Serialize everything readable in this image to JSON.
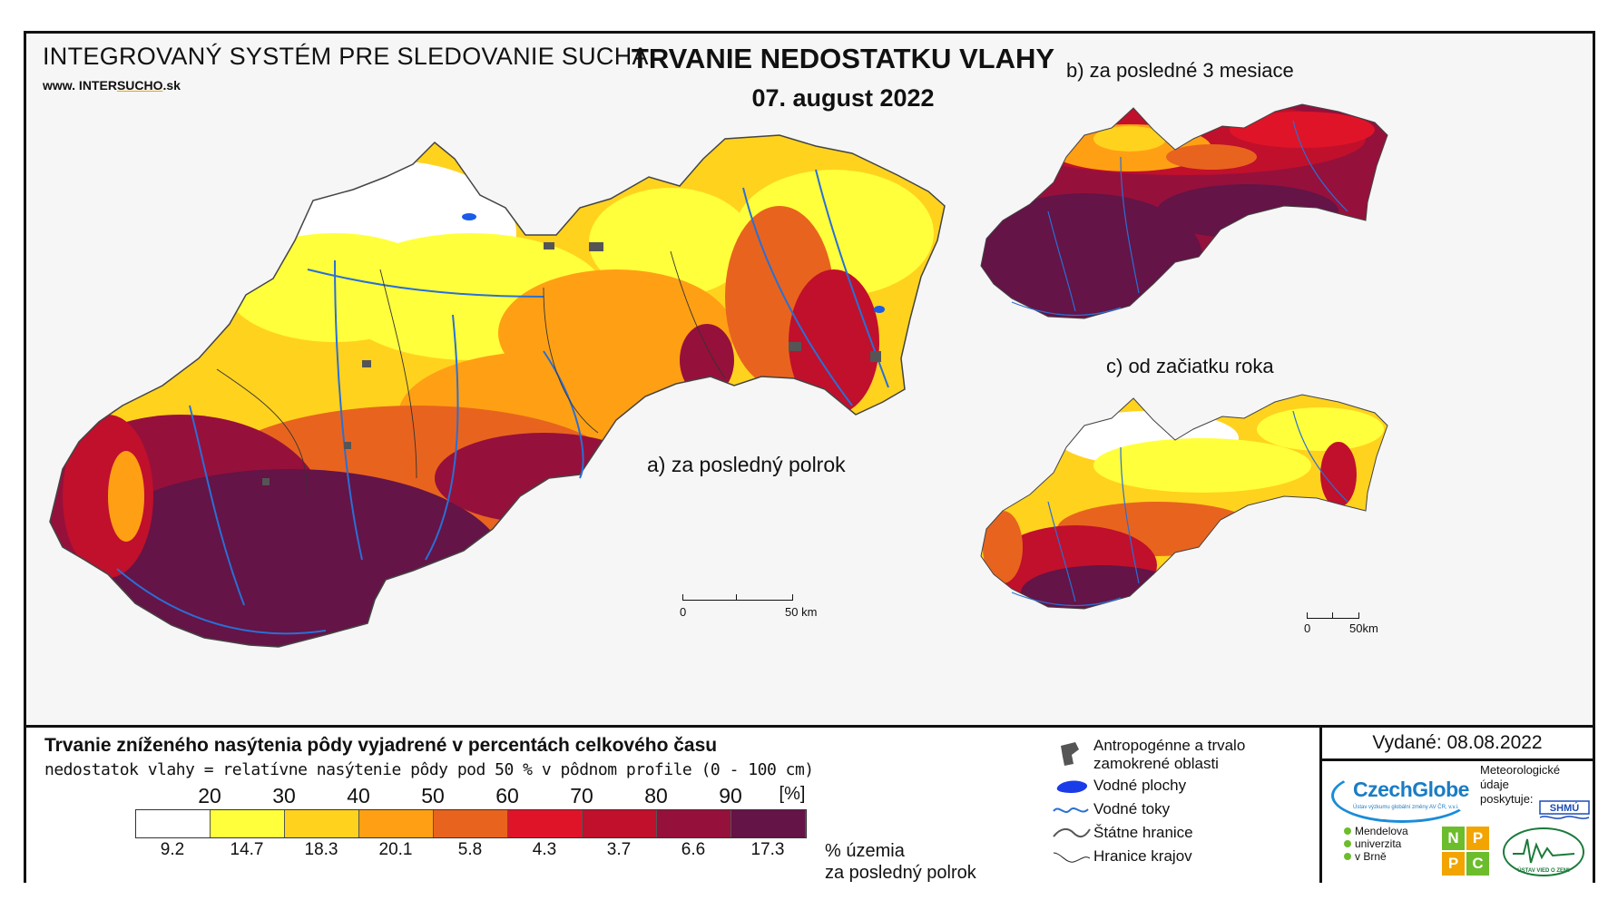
{
  "header": {
    "system_name": "INTEGROVANÝ SYSTÉM PRE SLEDOVANIE SUCHA",
    "url_prefix": "www. INTER",
    "url_brand": "SUCHO",
    "url_suffix": ".sk",
    "title": "TRVANIE NEDOSTATKU VLAHY",
    "date": "07. august 2022"
  },
  "maps": {
    "a_label": "a) za posledný polrok",
    "b_label": "b) za posledné 3 mesiace",
    "c_label": "c) od začiatku roka",
    "scale_main": {
      "start": "0",
      "end": "50 km"
    },
    "scale_small": {
      "start": "0",
      "end": "50km"
    }
  },
  "legend": {
    "title": "Trvanie zníženého nasýtenia pôdy vyjadrené v percentách celkového času",
    "subtitle": "nedostatok vlahy = relatívne nasýtenie pôdy pod 50 % v pôdnom profile (0 - 100 cm)",
    "ticks": [
      "20",
      "30",
      "40",
      "50",
      "60",
      "70",
      "80",
      "90"
    ],
    "unit": "[%]",
    "classes": [
      {
        "color": "#ffffff",
        "pct": "9.2"
      },
      {
        "color": "#ffff3c",
        "pct": "14.7"
      },
      {
        "color": "#ffd21e",
        "pct": "18.3"
      },
      {
        "color": "#ffa014",
        "pct": "20.1"
      },
      {
        "color": "#e8641e",
        "pct": "5.8"
      },
      {
        "color": "#e01428",
        "pct": "4.3"
      },
      {
        "color": "#c0102c",
        "pct": "3.7"
      },
      {
        "color": "#96103c",
        "pct": "6.6"
      },
      {
        "color": "#641446",
        "pct": "17.3"
      }
    ],
    "pct_label_line1": "% územia",
    "pct_label_line2": "za posledný polrok"
  },
  "symbols": {
    "anthropogenic_1": "Antropogénne a trvalo",
    "anthropogenic_2": "zamokrené oblasti",
    "water_areas": "Vodné plochy",
    "streams": "Vodné toky",
    "state_border": "Štátne hranice",
    "region_border": "Hranice krajov"
  },
  "issued": "Vydané: 08.08.2022",
  "logos": {
    "czechglobe": "CzechGlobe",
    "czechglobe_sub": "Ústav výzkumu globální změny AV ČR, v.v.i.",
    "meteo_1": "Meteorologické",
    "meteo_2": "údaje",
    "meteo_3": "poskytuje:",
    "shmu": "SHMÚ",
    "mendel_1": "Mendelova",
    "mendel_2": "univerzita",
    "mendel_3": "v Brně",
    "nppc": [
      "N",
      "P",
      "P",
      "C"
    ],
    "uvz": "ÚSTAV VIED O ZEMI"
  }
}
